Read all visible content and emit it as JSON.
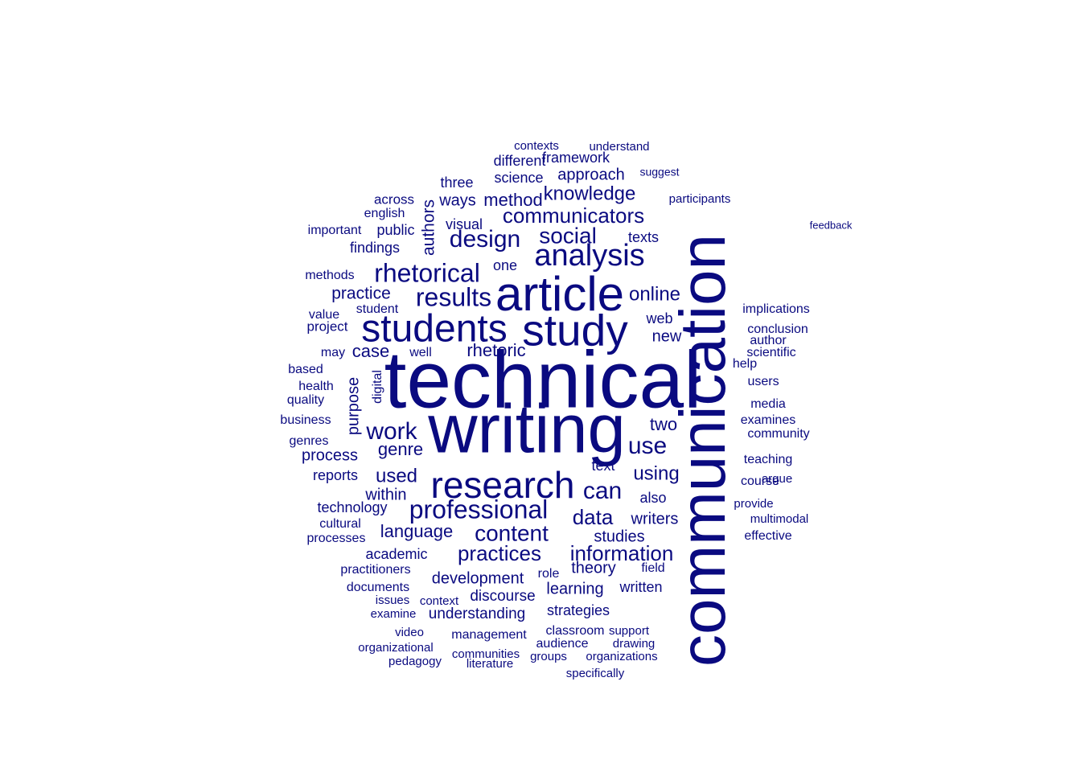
{
  "cloud": {
    "color": "#0a0a80",
    "words": [
      {
        "text": "technical",
        "weight": 100
      },
      {
        "text": "communication",
        "weight": 95
      },
      {
        "text": "writing",
        "weight": 88
      },
      {
        "text": "article",
        "weight": 62
      },
      {
        "text": "study",
        "weight": 56
      },
      {
        "text": "students",
        "weight": 54
      },
      {
        "text": "research",
        "weight": 48
      },
      {
        "text": "analysis",
        "weight": 38
      },
      {
        "text": "professional",
        "weight": 36
      },
      {
        "text": "rhetorical",
        "weight": 33
      },
      {
        "text": "results",
        "weight": 31
      },
      {
        "text": "design",
        "weight": 30
      },
      {
        "text": "social",
        "weight": 29
      },
      {
        "text": "can",
        "weight": 29
      },
      {
        "text": "content",
        "weight": 28
      },
      {
        "text": "practices",
        "weight": 27
      },
      {
        "text": "information",
        "weight": 27
      },
      {
        "text": "communicators",
        "weight": 26
      },
      {
        "text": "data",
        "weight": 26
      },
      {
        "text": "use",
        "weight": 27
      },
      {
        "text": "work",
        "weight": 27
      },
      {
        "text": "using",
        "weight": 24
      },
      {
        "text": "online",
        "weight": 23
      },
      {
        "text": "knowledge",
        "weight": 22
      },
      {
        "text": "language",
        "weight": 22
      },
      {
        "text": "used",
        "weight": 23
      },
      {
        "text": "genre",
        "weight": 22
      },
      {
        "text": "practice",
        "weight": 21
      },
      {
        "text": "case",
        "weight": 21
      },
      {
        "text": "authors",
        "weight": 20
      },
      {
        "text": "purpose",
        "weight": 20
      },
      {
        "text": "rhetoric",
        "weight": 20
      },
      {
        "text": "writers",
        "weight": 20
      },
      {
        "text": "development",
        "weight": 20
      },
      {
        "text": "learning",
        "weight": 20
      },
      {
        "text": "two",
        "weight": 21
      },
      {
        "text": "also",
        "weight": 19
      },
      {
        "text": "web",
        "weight": 19
      },
      {
        "text": "new",
        "weight": 19
      },
      {
        "text": "studies",
        "weight": 19
      },
      {
        "text": "method",
        "weight": 19
      },
      {
        "text": "theory",
        "weight": 19
      },
      {
        "text": "findings",
        "weight": 19
      },
      {
        "text": "process",
        "weight": 18
      },
      {
        "text": "within",
        "weight": 18
      },
      {
        "text": "discourse",
        "weight": 18
      },
      {
        "text": "understanding",
        "weight": 18
      },
      {
        "text": "texts",
        "weight": 18
      },
      {
        "text": "ways",
        "weight": 18
      },
      {
        "text": "three",
        "weight": 18
      },
      {
        "text": "text",
        "weight": 18
      },
      {
        "text": "technology",
        "weight": 18
      },
      {
        "text": "approach",
        "weight": 18
      },
      {
        "text": "one",
        "weight": 18
      },
      {
        "text": "visual",
        "weight": 17
      },
      {
        "text": "framework",
        "weight": 17
      },
      {
        "text": "written",
        "weight": 17
      },
      {
        "text": "strategies",
        "weight": 17
      },
      {
        "text": "academic",
        "weight": 17
      },
      {
        "text": "science",
        "weight": 17
      },
      {
        "text": "reports",
        "weight": 17
      },
      {
        "text": "different",
        "weight": 17
      },
      {
        "text": "feedback",
        "weight": 10
      },
      {
        "text": "public",
        "weight": 16
      },
      {
        "text": "english",
        "weight": 16
      },
      {
        "text": "across",
        "weight": 16
      },
      {
        "text": "project",
        "weight": 16
      },
      {
        "text": "conclusion",
        "weight": 16
      },
      {
        "text": "implications",
        "weight": 15
      },
      {
        "text": "users",
        "weight": 15
      },
      {
        "text": "media",
        "weight": 15
      },
      {
        "text": "examines",
        "weight": 15
      },
      {
        "text": "community",
        "weight": 15
      },
      {
        "text": "teaching",
        "weight": 15
      },
      {
        "text": "management",
        "weight": 15
      },
      {
        "text": "practitioners",
        "weight": 15
      },
      {
        "text": "documents",
        "weight": 15
      },
      {
        "text": "role",
        "weight": 15
      },
      {
        "text": "audience",
        "weight": 15
      },
      {
        "text": "classroom",
        "weight": 14
      },
      {
        "text": "contexts",
        "weight": 14
      },
      {
        "text": "understand",
        "weight": 14
      },
      {
        "text": "participants",
        "weight": 14
      },
      {
        "text": "suggest",
        "weight": 14
      },
      {
        "text": "methods",
        "weight": 14
      },
      {
        "text": "important",
        "weight": 14
      },
      {
        "text": "digital",
        "weight": 14
      },
      {
        "text": "cultural",
        "weight": 14
      },
      {
        "text": "processes",
        "weight": 14
      },
      {
        "text": "business",
        "weight": 14
      },
      {
        "text": "genres",
        "weight": 14
      },
      {
        "text": "quality",
        "weight": 14
      },
      {
        "text": "health",
        "weight": 14
      },
      {
        "text": "based",
        "weight": 14
      },
      {
        "text": "student",
        "weight": 14
      },
      {
        "text": "value",
        "weight": 14
      },
      {
        "text": "may",
        "weight": 14
      },
      {
        "text": "well",
        "weight": 14
      },
      {
        "text": "field",
        "weight": 14
      },
      {
        "text": "communities",
        "weight": 13
      },
      {
        "text": "organizations",
        "weight": 13
      },
      {
        "text": "groups",
        "weight": 13
      },
      {
        "text": "drawing",
        "weight": 13
      },
      {
        "text": "support",
        "weight": 13
      },
      {
        "text": "specifically",
        "weight": 13
      },
      {
        "text": "examine",
        "weight": 13
      },
      {
        "text": "issues",
        "weight": 13
      },
      {
        "text": "context",
        "weight": 13
      },
      {
        "text": "organizational",
        "weight": 13
      },
      {
        "text": "video",
        "weight": 13
      },
      {
        "text": "pedagogy",
        "weight": 13
      },
      {
        "text": "literature",
        "weight": 13
      },
      {
        "text": "scientific",
        "weight": 13
      },
      {
        "text": "author",
        "weight": 13
      },
      {
        "text": "help",
        "weight": 13
      },
      {
        "text": "course",
        "weight": 13
      },
      {
        "text": "argue",
        "weight": 13
      },
      {
        "text": "effective",
        "weight": 13
      },
      {
        "text": "provide",
        "weight": 13
      },
      {
        "text": "multimodal",
        "weight": 13
      }
    ]
  }
}
